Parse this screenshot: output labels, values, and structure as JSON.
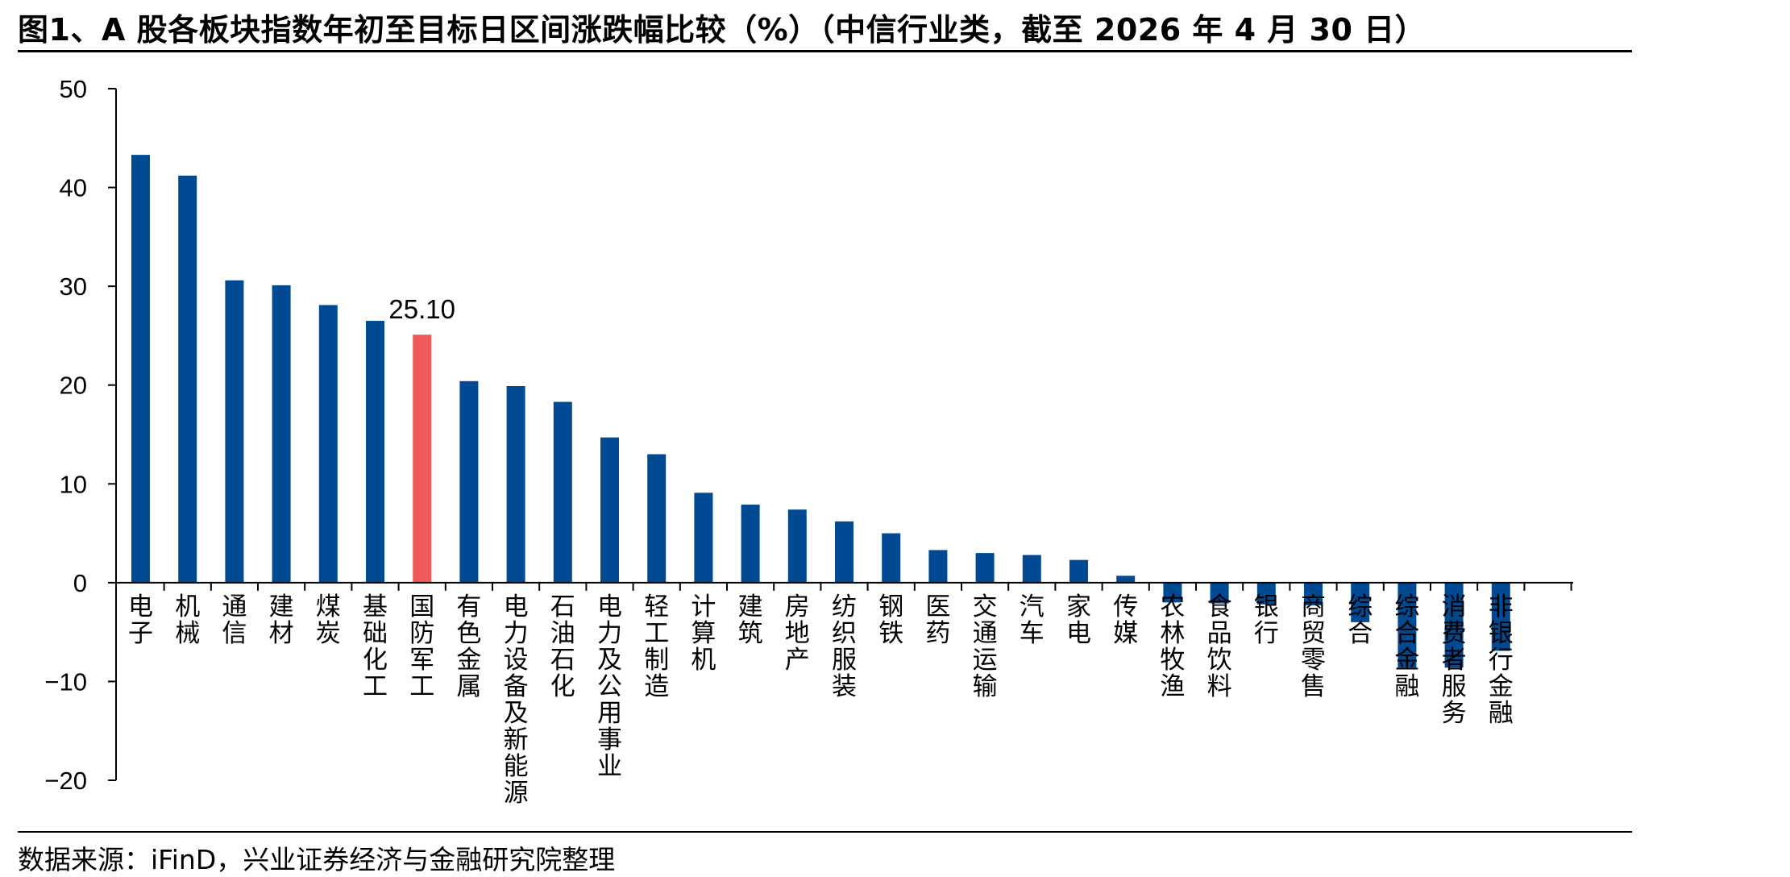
{
  "header": {
    "title": "图1、A 股各板块指数年初至目标日区间涨跌幅比较（%）（中信行业类，截至 2026 年 4 月 30 日）"
  },
  "footer": {
    "source": "数据来源：iFinD，兴业证券经济与金融研究院整理"
  },
  "colors": {
    "bar": "#004A94",
    "highlight": "#F0595A",
    "axis": "#000000"
  },
  "chart_data": {
    "type": "bar",
    "ylim": [
      -20,
      50
    ],
    "yticks": [
      50,
      40,
      30,
      20,
      10,
      0,
      -10,
      -20
    ],
    "ytick_labels": [
      "50",
      "40",
      "30",
      "20",
      "10",
      "0",
      "−10",
      "−20"
    ],
    "grid": false,
    "highlight_index": 6,
    "annotation": {
      "category": "国防军工",
      "value": 25.1,
      "text": "25.10"
    },
    "categories": [
      "电子",
      "机械",
      "通信",
      "建材",
      "煤炭",
      "基础化工",
      "国防军工",
      "有色金属",
      "电力设备及新能源",
      "石油石化",
      "电力及公用事业",
      "轻工制造",
      "计算机",
      "建筑",
      "房地产",
      "纺织服装",
      "钢铁",
      "医药",
      "交通运输",
      "汽车",
      "家电",
      "传媒",
      "农林牧渔",
      "食品饮料",
      "银行",
      "商贸零售",
      "综合",
      "综合金融",
      "消费者服务",
      "非银行金融"
    ],
    "values": [
      43.3,
      41.2,
      30.6,
      30.1,
      28.1,
      26.5,
      25.1,
      20.4,
      19.9,
      18.3,
      14.7,
      13.0,
      9.1,
      7.9,
      7.4,
      6.2,
      5.0,
      3.3,
      3.0,
      2.8,
      2.3,
      0.7,
      -2.0,
      -2.1,
      -2.2,
      -2.3,
      -4.0,
      -8.6,
      -8.6,
      -6.9
    ]
  }
}
